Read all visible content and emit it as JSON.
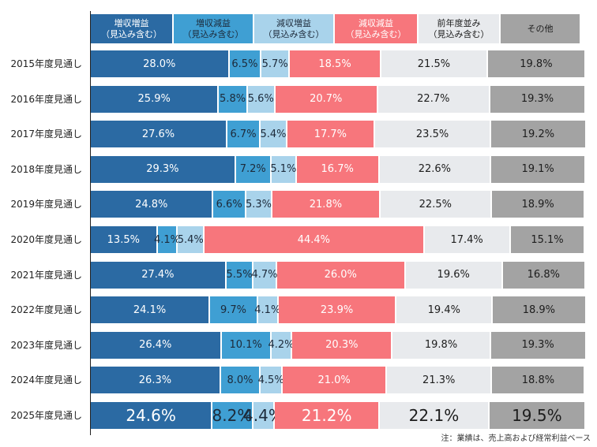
{
  "chart_data": {
    "type": "bar",
    "orientation": "horizontal-stacked-100",
    "title": "",
    "xlabel": "",
    "ylabel": "",
    "xlim": [
      0,
      100
    ],
    "grid": false,
    "legend_position": "top",
    "categories": [
      "2015年度見通し",
      "2016年度見通し",
      "2017年度見通し",
      "2018年度見通し",
      "2019年度見通し",
      "2020年度見通し",
      "2021年度見通し",
      "2022年度見通し",
      "2023年度見通し",
      "2024年度見通し",
      "2025年度見通し"
    ],
    "series": [
      {
        "name": "増収増益（見込み含む）",
        "line1": "増収増益",
        "line2": "（見込み含む）",
        "color": "#2b6aa3",
        "text_color": "#ffffff",
        "label_color": "#ffffff",
        "values": [
          28.0,
          25.9,
          27.6,
          29.3,
          24.8,
          13.5,
          27.4,
          24.1,
          26.4,
          26.3,
          24.6
        ]
      },
      {
        "name": "増収減益（見込み含む）",
        "line1": "増収減益",
        "line2": "（見込み含む）",
        "color": "#3f9fd3",
        "text_color": "#1d2a3a",
        "label_color": "#1d2a3a",
        "values": [
          6.5,
          5.8,
          6.7,
          7.2,
          6.6,
          4.1,
          5.5,
          9.7,
          10.1,
          8.0,
          8.2
        ]
      },
      {
        "name": "減収増益（見込み含む）",
        "line1": "減収増益",
        "line2": "（見込み含む）",
        "color": "#a9d3eb",
        "text_color": "#1d2a3a",
        "label_color": "#1d2a3a",
        "values": [
          5.7,
          5.6,
          5.4,
          5.1,
          5.3,
          5.4,
          4.7,
          4.1,
          4.2,
          4.5,
          4.4
        ]
      },
      {
        "name": "減収減益（見込み含む）",
        "line1": "減収減益",
        "line2": "（見込み含む）",
        "color": "#f7767c",
        "text_color": "#ffffff",
        "label_color": "#2a1a1a",
        "values": [
          18.5,
          20.7,
          17.7,
          16.7,
          21.8,
          44.4,
          26.0,
          23.9,
          20.3,
          21.0,
          21.2
        ]
      },
      {
        "name": "前年度並み（見込み含む）",
        "line1": "前年度並み",
        "line2": "（見込み含む）",
        "color": "#e8eaed",
        "text_color": "#1d1d1d",
        "label_color": "#1d1d1d",
        "values": [
          21.5,
          22.7,
          23.5,
          22.6,
          22.5,
          17.4,
          19.6,
          19.4,
          19.8,
          21.3,
          22.1
        ]
      },
      {
        "name": "その他",
        "line1": "その他",
        "line2": "",
        "color": "#a3a3a3",
        "text_color": "#1d1d1d",
        "label_color": "#1d1d1d",
        "values": [
          19.8,
          19.3,
          19.2,
          19.1,
          18.9,
          15.1,
          16.8,
          18.9,
          19.3,
          18.8,
          19.5
        ]
      }
    ],
    "value_labels": [
      [
        "28.0%",
        "6.5%",
        "5.7%",
        "18.5%",
        "21.5%",
        "19.8%"
      ],
      [
        "25.9%",
        "5.8%",
        "5.6%",
        "20.7%",
        "22.7%",
        "19.3%"
      ],
      [
        "27.6%",
        "6.7%",
        "5.4%",
        "17.7%",
        "23.5%",
        "19.2%"
      ],
      [
        "29.3%",
        "7.2%",
        "5.1%",
        "16.7%",
        "22.6%",
        "19.1%"
      ],
      [
        "24.8%",
        "6.6%",
        "5.3%",
        "21.8%",
        "22.5%",
        "18.9%"
      ],
      [
        "13.5%",
        "4.1%",
        "5.4%",
        "44.4%",
        "17.4%",
        "15.1%"
      ],
      [
        "27.4%",
        "5.5%",
        "4.7%",
        "26.0%",
        "19.6%",
        "16.8%"
      ],
      [
        "24.1%",
        "9.7%",
        "4.1%",
        "23.9%",
        "19.4%",
        "18.9%"
      ],
      [
        "26.4%",
        "10.1%",
        "4.2%",
        "20.3%",
        "19.8%",
        "19.3%"
      ],
      [
        "26.3%",
        "8.0%",
        "4.5%",
        "21.0%",
        "21.3%",
        "18.8%"
      ],
      [
        "24.6%",
        "8.2%",
        "4.4%",
        "21.2%",
        "22.1%",
        "19.5%"
      ]
    ],
    "highlighted_category": "2025年度見通し",
    "annotations": [
      "注：業績は、売上高および経常利益ベース"
    ]
  },
  "note": "注：業績は、売上高および経常利益ベース"
}
